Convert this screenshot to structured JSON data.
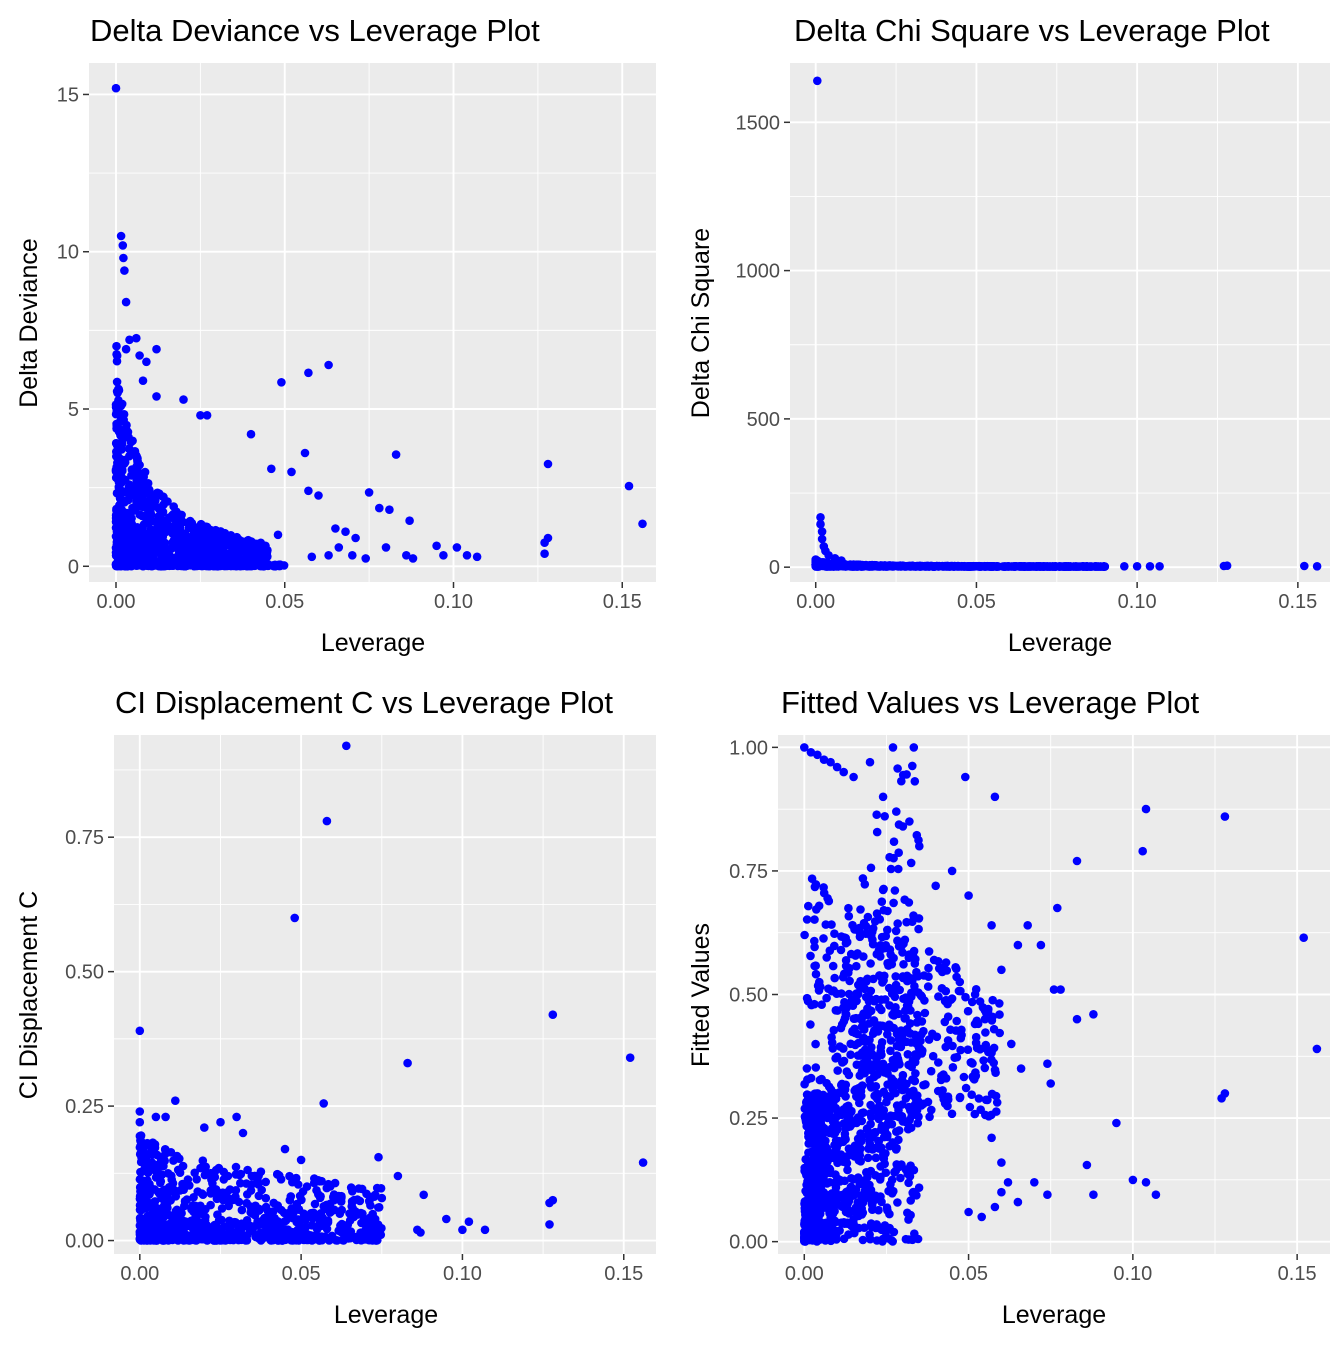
{
  "style": {
    "panel_background": "#ebebeb",
    "grid_major": "#ffffff",
    "point_color": "#0000ff",
    "tick_label_color": "#4d4d4d"
  },
  "chart_data": [
    {
      "type": "scatter",
      "title": "Delta Deviance vs Leverage Plot",
      "xlabel": "Leverage",
      "ylabel": "Delta Deviance",
      "xlim": [
        -0.008,
        0.16
      ],
      "ylim": [
        -0.5,
        16
      ],
      "xticks": [
        0,
        0.05,
        0.1,
        0.15
      ],
      "xtick_labels": [
        "0.00",
        "0.05",
        "0.10",
        "0.15"
      ],
      "yticks": [
        0,
        5,
        10,
        15
      ],
      "ytick_labels": [
        "0",
        "5",
        "10",
        "15"
      ],
      "series": [
        {
          "points": [
            [
              0.0,
              15.2
            ],
            [
              0.0015,
              10.5
            ],
            [
              0.002,
              10.2
            ],
            [
              0.0022,
              9.8
            ],
            [
              0.0025,
              9.4
            ],
            [
              0.003,
              8.4
            ],
            [
              0.003,
              6.9
            ],
            [
              0.004,
              7.2
            ],
            [
              0.006,
              7.25
            ],
            [
              0.007,
              6.7
            ],
            [
              0.009,
              6.5
            ],
            [
              0.012,
              6.9
            ],
            [
              0.008,
              5.9
            ],
            [
              0.012,
              5.4
            ],
            [
              0.02,
              5.3
            ],
            [
              0.025,
              4.8
            ],
            [
              0.027,
              4.8
            ],
            [
              0.04,
              4.2
            ],
            [
              0.049,
              5.85
            ],
            [
              0.057,
              6.15
            ],
            [
              0.063,
              6.4
            ],
            [
              0.056,
              3.6
            ],
            [
              0.083,
              3.55
            ],
            [
              0.128,
              3.25
            ],
            [
              0.152,
              2.55
            ],
            [
              0.156,
              1.35
            ],
            [
              0.075,
              2.35
            ],
            [
              0.078,
              1.85
            ],
            [
              0.081,
              1.8
            ],
            [
              0.087,
              1.45
            ],
            [
              0.095,
              0.65
            ],
            [
              0.097,
              0.35
            ],
            [
              0.101,
              0.6
            ],
            [
              0.104,
              0.35
            ],
            [
              0.107,
              0.3
            ],
            [
              0.086,
              0.35
            ],
            [
              0.088,
              0.25
            ],
            [
              0.128,
              0.9
            ],
            [
              0.127,
              0.75
            ],
            [
              0.127,
              0.4
            ],
            [
              0.07,
              0.35
            ],
            [
              0.074,
              0.25
            ],
            [
              0.063,
              0.35
            ],
            [
              0.06,
              2.25
            ],
            [
              0.057,
              2.4
            ],
            [
              0.052,
              3.0
            ],
            [
              0.046,
              3.1
            ],
            [
              0.048,
              1.0
            ],
            [
              0.065,
              1.2
            ],
            [
              0.068,
              1.1
            ],
            [
              0.071,
              0.9
            ],
            [
              0.066,
              0.6
            ],
            [
              0.08,
              0.6
            ],
            [
              0.058,
              0.3
            ]
          ]
        }
      ]
    },
    {
      "type": "scatter",
      "title": "Delta Chi Square vs Leverage Plot",
      "xlabel": "Leverage",
      "ylabel": "Delta Chi Square",
      "xlim": [
        -0.008,
        0.16
      ],
      "ylim": [
        -50,
        1700
      ],
      "xticks": [
        0,
        0.05,
        0.1,
        0.15
      ],
      "xtick_labels": [
        "0.00",
        "0.05",
        "0.10",
        "0.15"
      ],
      "yticks": [
        0,
        500,
        1000,
        1500
      ],
      "ytick_labels": [
        "0",
        "500",
        "1000",
        "1500"
      ],
      "series": [
        {
          "points": [
            [
              0.0005,
              1640
            ],
            [
              0.0015,
              168
            ],
            [
              0.0015,
              145
            ],
            [
              0.002,
              120
            ],
            [
              0.002,
              95
            ],
            [
              0.0025,
              70
            ],
            [
              0.003,
              55
            ],
            [
              0.004,
              40
            ],
            [
              0.006,
              30
            ],
            [
              0.008,
              22
            ],
            [
              0.128,
              5
            ],
            [
              0.127,
              4
            ],
            [
              0.152,
              4
            ],
            [
              0.156,
              3
            ],
            [
              0.096,
              3
            ],
            [
              0.1,
              3
            ],
            [
              0.104,
              3
            ],
            [
              0.107,
              3
            ],
            [
              0.083,
              3
            ],
            [
              0.087,
              3
            ]
          ]
        }
      ]
    },
    {
      "type": "scatter",
      "title": "CI Displacement C vs Leverage Plot",
      "xlabel": "Leverage",
      "ylabel": "CI Displacement C",
      "xlim": [
        -0.008,
        0.16
      ],
      "ylim": [
        -0.025,
        0.94
      ],
      "xticks": [
        0,
        0.05,
        0.1,
        0.15
      ],
      "xtick_labels": [
        "0.00",
        "0.05",
        "0.10",
        "0.15"
      ],
      "yticks": [
        0,
        0.25,
        0.5,
        0.75
      ],
      "ytick_labels": [
        "0.00",
        "0.25",
        "0.50",
        "0.75"
      ],
      "series": [
        {
          "points": [
            [
              0.064,
              0.92
            ],
            [
              0.058,
              0.78
            ],
            [
              0.048,
              0.6
            ],
            [
              0.0,
              0.39
            ],
            [
              0.128,
              0.42
            ],
            [
              0.083,
              0.33
            ],
            [
              0.152,
              0.34
            ],
            [
              0.156,
              0.145
            ],
            [
              0.057,
              0.255
            ],
            [
              0.011,
              0.26
            ],
            [
              0.03,
              0.23
            ],
            [
              0.0,
              0.24
            ],
            [
              0.0,
              0.22
            ],
            [
              0.005,
              0.23
            ],
            [
              0.008,
              0.23
            ],
            [
              0.02,
              0.21
            ],
            [
              0.025,
              0.22
            ],
            [
              0.032,
              0.2
            ],
            [
              0.045,
              0.17
            ],
            [
              0.05,
              0.15
            ],
            [
              0.074,
              0.155
            ],
            [
              0.08,
              0.12
            ],
            [
              0.073,
              0.085
            ],
            [
              0.088,
              0.085
            ],
            [
              0.128,
              0.075
            ],
            [
              0.127,
              0.07
            ],
            [
              0.127,
              0.03
            ],
            [
              0.095,
              0.04
            ],
            [
              0.102,
              0.035
            ],
            [
              0.1,
              0.02
            ],
            [
              0.107,
              0.02
            ],
            [
              0.086,
              0.02
            ],
            [
              0.087,
              0.015
            ],
            [
              0.066,
              0.06
            ],
            [
              0.069,
              0.05
            ],
            [
              0.062,
              0.05
            ],
            [
              0.07,
              0.02
            ],
            [
              0.074,
              0.015
            ]
          ]
        }
      ]
    },
    {
      "type": "scatter",
      "title": "Fitted Values vs Leverage Plot",
      "xlabel": "Leverage",
      "ylabel": "Fitted Values",
      "xlim": [
        -0.008,
        0.16
      ],
      "ylim": [
        -0.025,
        1.025
      ],
      "xticks": [
        0,
        0.05,
        0.1,
        0.15
      ],
      "xtick_labels": [
        "0.00",
        "0.05",
        "0.10",
        "0.15"
      ],
      "yticks": [
        0,
        0.25,
        0.5,
        0.75,
        1.0
      ],
      "ytick_labels": [
        "0.00",
        "0.25",
        "0.50",
        "0.75",
        "1.00"
      ],
      "series": [
        {
          "points": [
            [
              0.0,
              1.0
            ],
            [
              0.002,
              0.99
            ],
            [
              0.004,
              0.985
            ],
            [
              0.006,
              0.975
            ],
            [
              0.008,
              0.97
            ],
            [
              0.01,
              0.96
            ],
            [
              0.012,
              0.95
            ],
            [
              0.015,
              0.94
            ],
            [
              0.02,
              0.97
            ],
            [
              0.024,
              0.9
            ],
            [
              0.028,
              0.87
            ],
            [
              0.03,
              0.84
            ],
            [
              0.049,
              0.94
            ],
            [
              0.058,
              0.9
            ],
            [
              0.104,
              0.875
            ],
            [
              0.128,
              0.86
            ],
            [
              0.103,
              0.79
            ],
            [
              0.083,
              0.77
            ],
            [
              0.077,
              0.675
            ],
            [
              0.068,
              0.64
            ],
            [
              0.072,
              0.6
            ],
            [
              0.152,
              0.615
            ],
            [
              0.156,
              0.39
            ],
            [
              0.078,
              0.51
            ],
            [
              0.076,
              0.51
            ],
            [
              0.083,
              0.45
            ],
            [
              0.088,
              0.46
            ],
            [
              0.074,
              0.36
            ],
            [
              0.075,
              0.32
            ],
            [
              0.095,
              0.24
            ],
            [
              0.086,
              0.155
            ],
            [
              0.1,
              0.125
            ],
            [
              0.104,
              0.12
            ],
            [
              0.107,
              0.095
            ],
            [
              0.088,
              0.095
            ],
            [
              0.128,
              0.3
            ],
            [
              0.127,
              0.29
            ],
            [
              0.07,
              0.12
            ],
            [
              0.074,
              0.095
            ],
            [
              0.06,
              0.1
            ],
            [
              0.054,
              0.05
            ],
            [
              0.05,
              0.06
            ],
            [
              0.058,
              0.07
            ],
            [
              0.065,
              0.08
            ],
            [
              0.062,
              0.12
            ],
            [
              0.06,
              0.16
            ],
            [
              0.057,
              0.21
            ],
            [
              0.066,
              0.35
            ],
            [
              0.063,
              0.4
            ],
            [
              0.055,
              0.45
            ],
            [
              0.052,
              0.5
            ],
            [
              0.06,
              0.55
            ],
            [
              0.065,
              0.6
            ],
            [
              0.057,
              0.64
            ],
            [
              0.05,
              0.7
            ],
            [
              0.045,
              0.75
            ],
            [
              0.04,
              0.72
            ],
            [
              0.035,
              0.8
            ],
            [
              0.032,
              0.85
            ]
          ]
        }
      ]
    }
  ]
}
